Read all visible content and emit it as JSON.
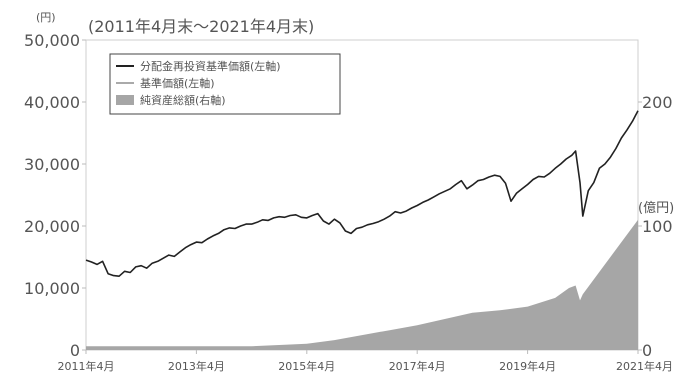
{
  "chart_data": {
    "type": "line",
    "period_label": "(2011年4月末～2021年4月末)",
    "left_axis": {
      "unit": "(円)",
      "ticks": [
        0,
        10000,
        20000,
        30000,
        40000,
        50000
      ],
      "tick_labels": [
        "0",
        "10,000",
        "20,000",
        "30,000",
        "40,000",
        "50,000"
      ],
      "ylim": [
        0,
        50000
      ]
    },
    "right_axis": {
      "unit": "(億円)",
      "ticks": [
        0,
        100,
        200
      ],
      "tick_labels": [
        "0",
        "100",
        "200"
      ],
      "ylim": [
        0,
        250
      ]
    },
    "x_axis": {
      "ticks": [
        2011.25,
        2013.25,
        2015.25,
        2017.25,
        2019.25,
        2021.25
      ],
      "tick_labels": [
        "2011年4月",
        "2013年4月",
        "2015年4月",
        "2017年4月",
        "2019年4月",
        "2021年4月"
      ],
      "xlim": [
        2011.25,
        2021.25
      ]
    },
    "legend": {
      "position": "top-left",
      "entries": [
        {
          "label": "分配金再投資基準価額(左軸)",
          "style": "line",
          "color": "#222222"
        },
        {
          "label": "基準価額(左軸)",
          "style": "line",
          "color": "#aaaaaa"
        },
        {
          "label": "純資産総額(右軸)",
          "style": "area",
          "color": "#a6a6a6"
        }
      ]
    },
    "series": [
      {
        "name": "分配金再投資基準価額(左軸)",
        "axis": "left",
        "color": "#222222",
        "x": [
          2011.25,
          2011.35,
          2011.45,
          2011.55,
          2011.65,
          2011.75,
          2011.85,
          2011.95,
          2012.05,
          2012.15,
          2012.25,
          2012.35,
          2012.45,
          2012.55,
          2012.65,
          2012.75,
          2012.85,
          2012.95,
          2013.05,
          2013.15,
          2013.25,
          2013.35,
          2013.45,
          2013.55,
          2013.65,
          2013.75,
          2013.85,
          2013.95,
          2014.05,
          2014.15,
          2014.25,
          2014.35,
          2014.45,
          2014.55,
          2014.65,
          2014.75,
          2014.85,
          2014.95,
          2015.05,
          2015.15,
          2015.25,
          2015.35,
          2015.45,
          2015.55,
          2015.65,
          2015.75,
          2015.85,
          2015.95,
          2016.05,
          2016.15,
          2016.25,
          2016.35,
          2016.45,
          2016.55,
          2016.65,
          2016.75,
          2016.85,
          2016.95,
          2017.05,
          2017.15,
          2017.25,
          2017.35,
          2017.45,
          2017.55,
          2017.65,
          2017.75,
          2017.85,
          2017.95,
          2018.05,
          2018.15,
          2018.25,
          2018.35,
          2018.45,
          2018.55,
          2018.65,
          2018.75,
          2018.85,
          2018.95,
          2019.05,
          2019.15,
          2019.25,
          2019.35,
          2019.45,
          2019.55,
          2019.65,
          2019.75,
          2019.85,
          2019.95,
          2020.05,
          2020.12,
          2020.2,
          2020.25,
          2020.35,
          2020.45,
          2020.55,
          2020.65,
          2020.75,
          2020.85,
          2020.95,
          2021.05,
          2021.15,
          2021.25
        ],
        "values": [
          14500,
          14200,
          13800,
          14300,
          12300,
          12000,
          11900,
          12700,
          12500,
          13400,
          13600,
          13200,
          14000,
          14300,
          14800,
          15300,
          15100,
          15800,
          16500,
          17000,
          17400,
          17300,
          17900,
          18400,
          18800,
          19400,
          19700,
          19600,
          20000,
          20300,
          20300,
          20600,
          21000,
          20900,
          21300,
          21500,
          21400,
          21700,
          21800,
          21400,
          21300,
          21700,
          22000,
          20800,
          20300,
          21100,
          20500,
          19200,
          18800,
          19600,
          19800,
          20200,
          20400,
          20700,
          21100,
          21600,
          22300,
          22100,
          22400,
          22900,
          23300,
          23800,
          24200,
          24700,
          25200,
          25600,
          26000,
          26700,
          27300,
          26000,
          26600,
          27300,
          27500,
          27900,
          28200,
          28000,
          26900,
          24000,
          25300,
          26000,
          26700,
          27500,
          28000,
          27900,
          28500,
          29300,
          30000,
          30800,
          31400,
          32100,
          27000,
          21600,
          25700,
          27000,
          29300,
          30000,
          31100,
          32500,
          34200,
          35500,
          36900,
          38600
        ]
      },
      {
        "name": "純資産総額(右軸)",
        "axis": "right",
        "type": "area",
        "color": "#a6a6a6",
        "x": [
          2011.25,
          2012.25,
          2013.25,
          2014.25,
          2014.75,
          2015.25,
          2015.75,
          2016.25,
          2016.75,
          2017.25,
          2017.75,
          2018.25,
          2018.75,
          2019.25,
          2019.75,
          2020.0,
          2020.12,
          2020.2,
          2020.25,
          2020.5,
          2020.75,
          2021.0,
          2021.25
        ],
        "values": [
          3,
          3,
          3,
          3,
          4,
          5,
          8,
          12,
          16,
          20,
          25,
          30,
          32,
          35,
          42,
          50,
          52,
          40,
          45,
          60,
          75,
          90,
          105
        ]
      }
    ]
  }
}
